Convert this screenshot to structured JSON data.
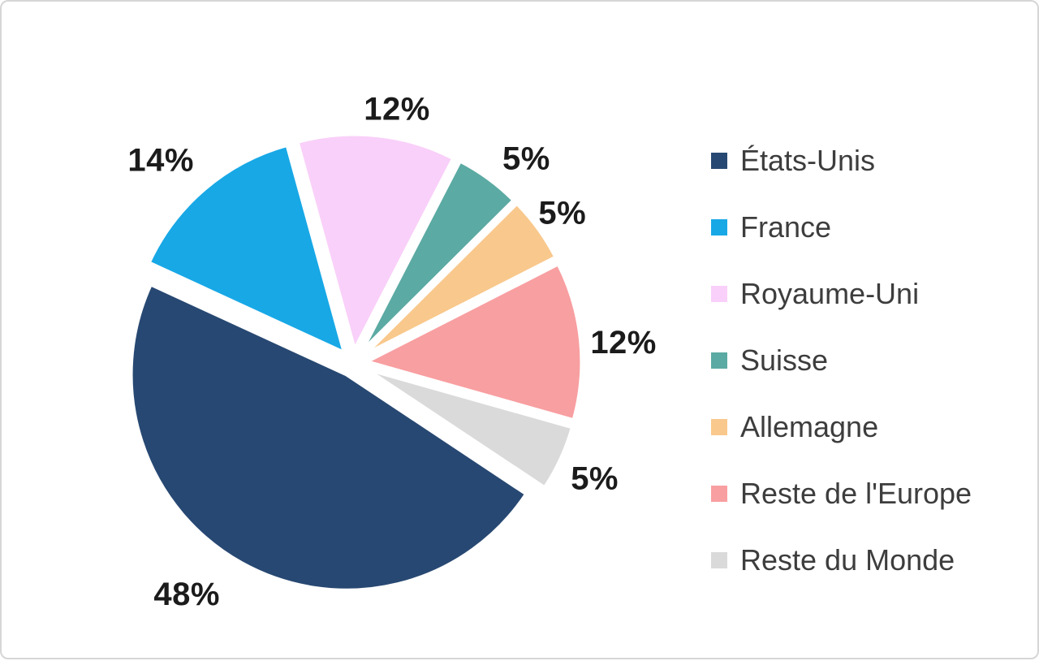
{
  "chart_data": {
    "type": "pie",
    "title": "",
    "legend_position": "right",
    "start_angle_deg": 123.6,
    "series": [
      {
        "id": "etats-unis",
        "label": "États-Unis",
        "value": 48,
        "display": "48%",
        "color": "#274872",
        "label_angle_deg": 215.7,
        "label_radius_px": 351
      },
      {
        "id": "france",
        "label": "France",
        "value": 14,
        "display": "14%",
        "color": "#18a8e6",
        "label_angle_deg": 316.5,
        "label_radius_px": 344
      },
      {
        "id": "royaume-uni",
        "label": "Royaume-Uni",
        "value": 12,
        "display": "12%",
        "color": "#f9d0f9",
        "label_angle_deg": 9.8,
        "label_radius_px": 317
      },
      {
        "id": "suisse",
        "label": "Suisse",
        "value": 5,
        "display": "5%",
        "color": "#5baaa3",
        "label_angle_deg": 40.3,
        "label_radius_px": 330
      },
      {
        "id": "allemagne",
        "label": "Allemagne",
        "value": 5,
        "display": "5%",
        "color": "#f9c88c",
        "label_angle_deg": 54.4,
        "label_radius_px": 317
      },
      {
        "id": "reste-europe",
        "label": "Reste de l'Europe",
        "value": 12,
        "display": "12%",
        "color": "#f89fa1",
        "label_angle_deg": 85.7,
        "label_radius_px": 334
      },
      {
        "id": "reste-monde",
        "label": "Reste du Monde",
        "value": 5,
        "display": "5%",
        "color": "#dadada",
        "label_angle_deg": 115.6,
        "label_radius_px": 330
      }
    ],
    "colors": {
      "slice_border": "#ffffff",
      "percent_label": "#1b1b1b",
      "legend_text": "#3d3d3d",
      "card_border": "#d6d6d6"
    }
  }
}
